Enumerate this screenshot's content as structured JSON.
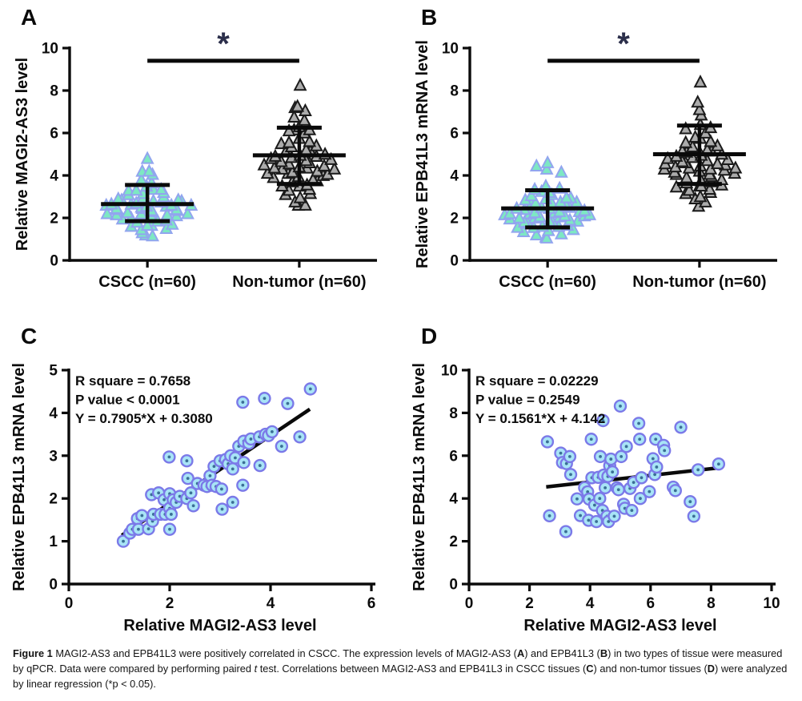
{
  "figure": {
    "caption_segments": [
      {
        "t": "Figure 1 ",
        "b": true
      },
      {
        "t": "MAGI2-AS3 and EPB41L3 were positively correlated in CSCC. The expression levels of MAGI2-AS3 ("
      },
      {
        "t": "A",
        "b": true
      },
      {
        "t": ") and EPB41L3 ("
      },
      {
        "t": "B",
        "b": true
      },
      {
        "t": ") in two types of tissue were measured by qPCR. Data were compared by performing paired "
      },
      {
        "t": "t",
        "i": true
      },
      {
        "t": " test. Correlations between MAGI2-AS3 and EPB41L3 in CSCC tissues ("
      },
      {
        "t": "C",
        "b": true
      },
      {
        "t": ") and non-tumor tissues ("
      },
      {
        "t": "D",
        "b": true
      },
      {
        "t": ") were analyzed by linear regression (*p < 0.05)."
      }
    ]
  },
  "colors": {
    "axis": "#0b0b0b",
    "error_bar": "#0a0a0a",
    "significance_asterisk": "#2b2e4a",
    "significance_bar": "#0a0a0a",
    "regression_line": "#0a0a0a",
    "cscc_triangle_fill": "#7de8c3",
    "cscc_triangle_stroke": "#92a5ef",
    "nontumor_triangle_fill": "#ababab",
    "nontumor_triangle_stroke": "#1a1a1a",
    "scatter_circle_fill": "#a8e4f6",
    "scatter_circle_stroke": "#7b79e8",
    "scatter_circle_dot": "#3a6e96"
  },
  "chart_data": [
    {
      "panel_label": "A",
      "type": "column-scatter",
      "ylabel": "Relative MAGI2-AS3 level",
      "ylim": [
        0,
        10
      ],
      "yticks": [
        0,
        2,
        4,
        6,
        8,
        10
      ],
      "categories": [
        "CSCC (n=60)",
        "Non-tumor (n=60)"
      ],
      "significance": {
        "label": "*",
        "y": 9.4
      },
      "groups": [
        {
          "name": "CSCC (n=60)",
          "n": 60,
          "marker": "triangle",
          "fill": "#7de8c3",
          "stroke": "#92a5ef",
          "median": 2.65,
          "whisker_low": 1.85,
          "whisker_high": 3.55,
          "value_rows": [
            [
              1.05,
              1
            ],
            [
              1.3,
              2
            ],
            [
              1.55,
              4
            ],
            [
              1.8,
              5
            ],
            [
              2.05,
              6
            ],
            [
              2.3,
              8
            ],
            [
              2.5,
              8
            ],
            [
              2.7,
              7
            ],
            [
              2.95,
              6
            ],
            [
              3.2,
              4
            ],
            [
              3.45,
              3
            ],
            [
              3.7,
              2
            ],
            [
              4.05,
              2
            ],
            [
              4.35,
              1
            ],
            [
              4.75,
              1
            ]
          ]
        },
        {
          "name": "Non-tumor (n=60)",
          "n": 60,
          "marker": "triangle",
          "fill": "#ababab",
          "stroke": "#1a1a1a",
          "median": 4.95,
          "whisker_low": 3.6,
          "whisker_high": 6.25,
          "value_rows": [
            [
              2.45,
              1
            ],
            [
              2.75,
              2
            ],
            [
              3.05,
              3
            ],
            [
              3.35,
              3
            ],
            [
              3.65,
              4
            ],
            [
              3.95,
              5
            ],
            [
              4.2,
              6
            ],
            [
              4.45,
              7
            ],
            [
              4.75,
              6
            ],
            [
              5.05,
              5
            ],
            [
              5.35,
              4
            ],
            [
              5.65,
              3
            ],
            [
              6.0,
              2
            ],
            [
              6.25,
              3
            ],
            [
              6.65,
              2
            ],
            [
              7.05,
              2
            ],
            [
              7.4,
              1
            ],
            [
              8.2,
              1
            ]
          ]
        }
      ]
    },
    {
      "panel_label": "B",
      "type": "column-scatter",
      "ylabel": "Relative EPB41L3 mRNA level",
      "ylim": [
        0,
        10
      ],
      "yticks": [
        0,
        2,
        4,
        6,
        8,
        10
      ],
      "categories": [
        "CSCC (n=60)",
        "Non-tumor (n=60)"
      ],
      "significance": {
        "label": "*",
        "y": 9.4
      },
      "groups": [
        {
          "name": "CSCC (n=60)",
          "n": 60,
          "marker": "triangle",
          "fill": "#7de8c3",
          "stroke": "#92a5ef",
          "median": 2.45,
          "whisker_low": 1.55,
          "whisker_high": 3.3,
          "value_rows": [
            [
              0.95,
              1
            ],
            [
              1.2,
              3
            ],
            [
              1.45,
              5
            ],
            [
              1.7,
              6
            ],
            [
              1.95,
              7
            ],
            [
              2.15,
              8
            ],
            [
              2.35,
              7
            ],
            [
              2.6,
              6
            ],
            [
              2.85,
              5
            ],
            [
              3.1,
              4
            ],
            [
              3.3,
              3
            ],
            [
              3.55,
              1
            ],
            [
              4.3,
              3
            ],
            [
              4.55,
              1
            ]
          ]
        },
        {
          "name": "Non-tumor (n=60)",
          "n": 60,
          "marker": "triangle",
          "fill": "#ababab",
          "stroke": "#1a1a1a",
          "median": 5.0,
          "whisker_low": 3.6,
          "whisker_high": 6.35,
          "value_rows": [
            [
              2.4,
              1
            ],
            [
              2.9,
              2
            ],
            [
              3.1,
              3
            ],
            [
              3.35,
              3
            ],
            [
              3.6,
              5
            ],
            [
              3.9,
              5
            ],
            [
              4.2,
              7
            ],
            [
              4.45,
              7
            ],
            [
              4.7,
              6
            ],
            [
              5.0,
              5
            ],
            [
              5.3,
              4
            ],
            [
              5.6,
              3
            ],
            [
              5.95,
              2
            ],
            [
              6.3,
              3
            ],
            [
              6.7,
              1
            ],
            [
              7.1,
              1
            ],
            [
              7.6,
              1
            ],
            [
              8.35,
              1
            ]
          ]
        }
      ]
    },
    {
      "panel_label": "C",
      "type": "scatter",
      "xlabel": "Relative MAGI2-AS3 level",
      "ylabel": "Relative EPB41L3 mRNA level",
      "xlim": [
        0,
        6
      ],
      "xticks": [
        0,
        2,
        4,
        6
      ],
      "ylim": [
        0,
        5
      ],
      "yticks": [
        0,
        1,
        2,
        3,
        4,
        5
      ],
      "annotations": [
        "R square = 0.7658",
        "P value < 0.0001",
        "Y = 0.7905*X + 0.3080"
      ],
      "regression": {
        "slope": 0.7905,
        "intercept": 0.308,
        "x_start": 1.05,
        "x_end": 4.78
      },
      "points": [
        [
          1.08,
          1.0
        ],
        [
          1.21,
          1.19
        ],
        [
          1.26,
          1.28
        ],
        [
          1.36,
          1.53
        ],
        [
          1.38,
          1.28
        ],
        [
          1.45,
          1.6
        ],
        [
          1.58,
          1.29
        ],
        [
          1.64,
          2.09
        ],
        [
          1.66,
          1.47
        ],
        [
          1.68,
          1.63
        ],
        [
          1.78,
          2.13
        ],
        [
          1.82,
          1.63
        ],
        [
          1.89,
          1.97
        ],
        [
          1.91,
          1.63
        ],
        [
          1.99,
          2.97
        ],
        [
          2.0,
          2.11
        ],
        [
          2.0,
          1.77
        ],
        [
          2.0,
          1.28
        ],
        [
          2.03,
          1.63
        ],
        [
          2.07,
          1.97
        ],
        [
          2.13,
          1.91
        ],
        [
          2.2,
          2.05
        ],
        [
          2.34,
          2.88
        ],
        [
          2.34,
          2.0
        ],
        [
          2.36,
          2.47
        ],
        [
          2.42,
          2.13
        ],
        [
          2.47,
          1.83
        ],
        [
          2.55,
          2.35
        ],
        [
          2.68,
          2.31
        ],
        [
          2.74,
          2.28
        ],
        [
          2.8,
          2.53
        ],
        [
          2.84,
          2.31
        ],
        [
          2.88,
          2.75
        ],
        [
          2.92,
          2.28
        ],
        [
          3.0,
          2.88
        ],
        [
          3.03,
          2.22
        ],
        [
          3.04,
          1.75
        ],
        [
          3.11,
          2.91
        ],
        [
          3.16,
          2.81
        ],
        [
          3.21,
          3.0
        ],
        [
          3.25,
          2.69
        ],
        [
          3.25,
          1.91
        ],
        [
          3.3,
          2.95
        ],
        [
          3.37,
          3.22
        ],
        [
          3.45,
          2.31
        ],
        [
          3.45,
          4.25
        ],
        [
          3.47,
          2.84
        ],
        [
          3.47,
          3.34
        ],
        [
          3.57,
          3.29
        ],
        [
          3.61,
          3.39
        ],
        [
          3.78,
          3.44
        ],
        [
          3.79,
          2.77
        ],
        [
          3.88,
          4.34
        ],
        [
          3.9,
          3.5
        ],
        [
          3.96,
          3.47
        ],
        [
          4.03,
          3.56
        ],
        [
          4.22,
          3.22
        ],
        [
          4.34,
          4.22
        ],
        [
          4.58,
          3.44
        ],
        [
          4.79,
          4.56
        ]
      ]
    },
    {
      "panel_label": "D",
      "type": "scatter",
      "xlabel": "Relative MAGI2-AS3 level",
      "ylabel": "Relative EPB41L3 mRNA level",
      "xlim": [
        0,
        10
      ],
      "xticks": [
        0,
        2,
        4,
        6,
        8,
        10
      ],
      "ylim": [
        0,
        10
      ],
      "yticks": [
        0,
        2,
        4,
        6,
        8,
        10
      ],
      "annotations": [
        "R square = 0.02229",
        "P value = 0.2549",
        "Y = 0.1561*X + 4.142"
      ],
      "regression": {
        "slope": 0.1561,
        "intercept": 4.142,
        "x_start": 2.55,
        "x_end": 8.3
      },
      "points": [
        [
          2.59,
          6.65
        ],
        [
          2.66,
          3.19
        ],
        [
          3.03,
          6.12
        ],
        [
          3.09,
          5.68
        ],
        [
          3.2,
          2.45
        ],
        [
          3.22,
          5.63
        ],
        [
          3.33,
          5.96
        ],
        [
          3.36,
          5.12
        ],
        [
          3.57,
          3.98
        ],
        [
          3.68,
          3.2
        ],
        [
          3.82,
          4.5
        ],
        [
          3.92,
          4.31
        ],
        [
          3.95,
          2.98
        ],
        [
          3.97,
          3.97
        ],
        [
          4.04,
          6.77
        ],
        [
          4.06,
          4.97
        ],
        [
          4.15,
          3.69
        ],
        [
          4.21,
          2.92
        ],
        [
          4.27,
          4.99
        ],
        [
          4.32,
          4.0
        ],
        [
          4.34,
          5.96
        ],
        [
          4.41,
          3.44
        ],
        [
          4.43,
          7.64
        ],
        [
          4.45,
          5.09
        ],
        [
          4.5,
          4.5
        ],
        [
          4.56,
          3.17
        ],
        [
          4.59,
          5.03
        ],
        [
          4.61,
          2.92
        ],
        [
          4.65,
          5.53
        ],
        [
          4.69,
          5.84
        ],
        [
          4.74,
          5.24
        ],
        [
          4.8,
          3.17
        ],
        [
          4.89,
          4.5
        ],
        [
          4.94,
          4.41
        ],
        [
          5.0,
          8.32
        ],
        [
          5.03,
          5.96
        ],
        [
          5.11,
          3.73
        ],
        [
          5.15,
          3.54
        ],
        [
          5.2,
          6.43
        ],
        [
          5.32,
          4.47
        ],
        [
          5.38,
          3.44
        ],
        [
          5.44,
          4.75
        ],
        [
          5.61,
          7.51
        ],
        [
          5.64,
          6.77
        ],
        [
          5.66,
          4.0
        ],
        [
          5.7,
          4.97
        ],
        [
          5.96,
          4.32
        ],
        [
          6.08,
          5.86
        ],
        [
          6.14,
          5.12
        ],
        [
          6.17,
          6.77
        ],
        [
          6.2,
          5.47
        ],
        [
          6.43,
          6.48
        ],
        [
          6.46,
          6.24
        ],
        [
          6.75,
          4.53
        ],
        [
          6.82,
          4.37
        ],
        [
          7.0,
          7.33
        ],
        [
          7.31,
          3.85
        ],
        [
          7.43,
          3.17
        ],
        [
          7.57,
          5.34
        ],
        [
          8.25,
          5.61
        ]
      ]
    }
  ]
}
